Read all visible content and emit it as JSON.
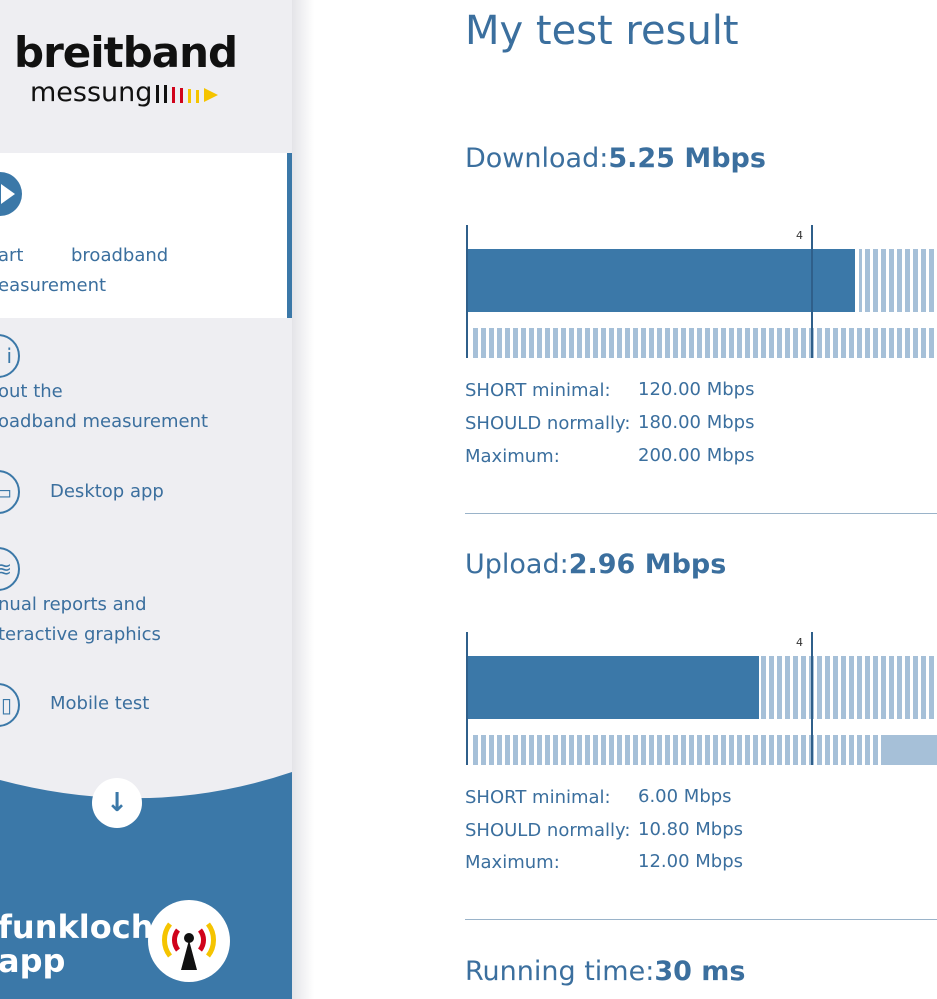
{
  "sidebar": {
    "logo": {
      "main": "breitband",
      "sub": "messung"
    },
    "items": [
      {
        "label_part1": "art",
        "label_part2": "broadband",
        "label_line2": "easurement",
        "icon": "play-icon",
        "active": true
      },
      {
        "label_line1": "out the",
        "label_line2": "oadband measurement",
        "icon": "info-icon"
      },
      {
        "label": "Desktop app",
        "icon": "desktop-icon"
      },
      {
        "label_line1": "nual reports and",
        "label_line2": "teractive graphics",
        "icon": "chart-icon"
      },
      {
        "label": "Mobile test",
        "icon": "mobile-icon"
      }
    ],
    "funkloch": {
      "line1": "funkloch-",
      "line2": "app"
    }
  },
  "main": {
    "title": "My test result",
    "download": {
      "label": "Download:",
      "value": "5.25 Mbps",
      "marker_label": "4",
      "stats": [
        {
          "label": "SHORT minimal:",
          "value": "120.00 Mbps"
        },
        {
          "label": "SHOULD normally:",
          "value": "180.00 Mbps"
        },
        {
          "label": "Maximum:",
          "value": "200.00 Mbps"
        }
      ]
    },
    "upload": {
      "label": "Upload:",
      "value": "2.96 Mbps",
      "marker_label": "4",
      "stats": [
        {
          "label": "SHORT minimal:",
          "value": "6.00 Mbps"
        },
        {
          "label": "SHOULD normally:",
          "value": "10.80 Mbps"
        },
        {
          "label": "Maximum:",
          "value": "12.00 Mbps"
        }
      ]
    },
    "running_time": {
      "label": "Running time:",
      "value": "30 ms"
    }
  },
  "colors": {
    "accent": "#3b78a8",
    "light": "#a6c0d8",
    "text": "#3b6f9e"
  }
}
